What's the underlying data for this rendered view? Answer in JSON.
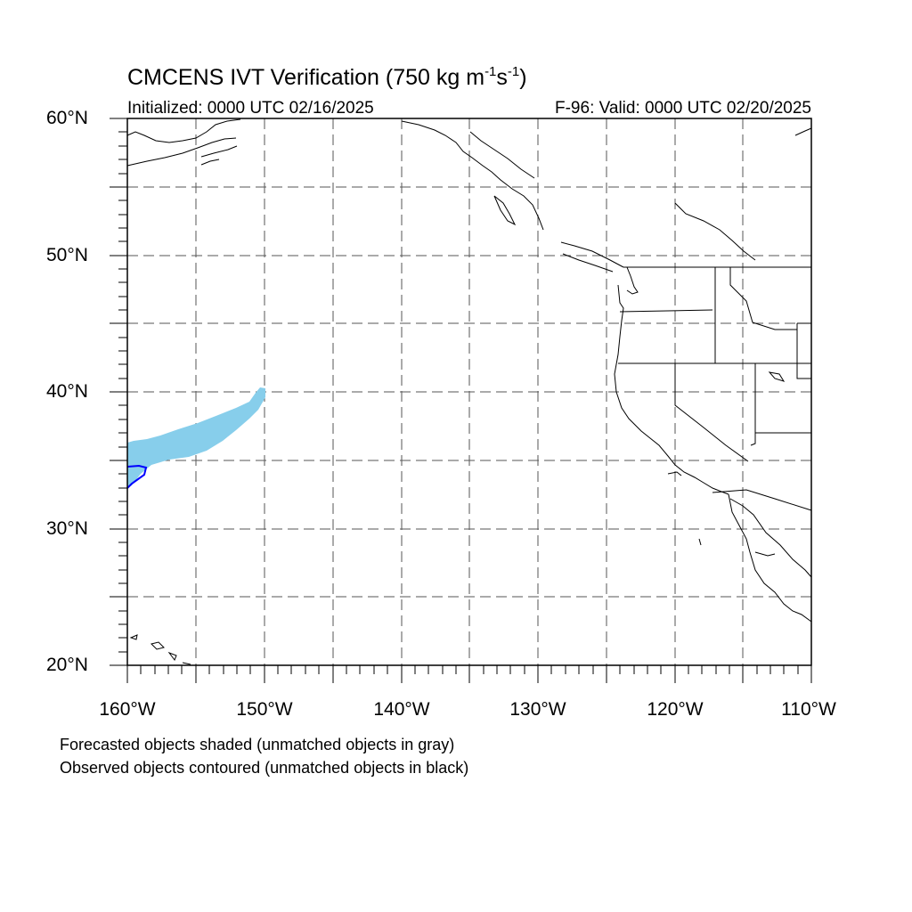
{
  "title": {
    "main": "CMCENS IVT Verification (750 kg m",
    "exp1": "-1",
    "mid": "s",
    "exp2": "-1",
    "close": ")"
  },
  "initialized": "Initialized: 0000 UTC 02/16/2025",
  "valid": "F-96: Valid: 0000 UTC 02/20/2025",
  "lat_labels": [
    "60°N",
    "50°N",
    "40°N",
    "30°N",
    "20°N"
  ],
  "lon_labels": [
    "160°W",
    "150°W",
    "140°W",
    "130°W",
    "120°W",
    "110°W"
  ],
  "notes": [
    "Forecasted objects shaded (unmatched objects in gray)",
    "Observed objects contoured (unmatched objects in black)"
  ],
  "map_extent": {
    "lon_min": -160,
    "lon_max": -110,
    "lat_min": 20,
    "lat_max": 60
  },
  "gridlines": "dashed, every 5 degrees",
  "colors": {
    "forecast_object": "#87ceeb",
    "observed_contour": "#0000ff",
    "coastline": "#000000",
    "gridline": "#555555"
  }
}
